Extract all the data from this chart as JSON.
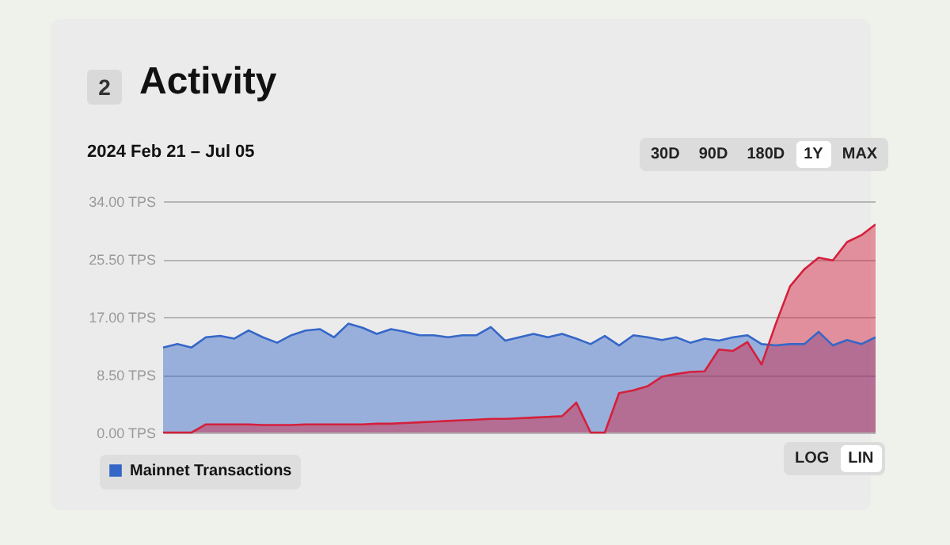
{
  "chart_data": {
    "type": "area",
    "title": "Activity",
    "subtitle": "2024 Feb 21 – Jul 05",
    "annotations": [
      "2",
      "30D",
      "90D",
      "180D",
      "1Y",
      "MAX",
      "LOG",
      "LIN"
    ],
    "categories": [
      null,
      null,
      null,
      null,
      null,
      null,
      null,
      null,
      null,
      null,
      null,
      null,
      null,
      null,
      null,
      null,
      null,
      null,
      null,
      null,
      null,
      null,
      null,
      null,
      null,
      null,
      null,
      null,
      null,
      null,
      null,
      null,
      null,
      null,
      null,
      null,
      null,
      null,
      null,
      null,
      null,
      null,
      null,
      null,
      null,
      null,
      null,
      null,
      null,
      null,
      null
    ],
    "series": [
      {
        "name": "Mainnet Transactions",
        "color": "#3567c8",
        "values": [
          12.5,
          13.0,
          12.5,
          14.0,
          14.2,
          13.8,
          15.0,
          14.0,
          13.2,
          14.3,
          15.0,
          15.2,
          14.0,
          16.0,
          15.4,
          14.5,
          15.2,
          14.8,
          14.3,
          14.3,
          14.0,
          14.3,
          14.3,
          15.5,
          13.5,
          14.0,
          14.5,
          14.0,
          14.5,
          13.8,
          13.0,
          14.2,
          12.8,
          14.3,
          14.0,
          13.6,
          14.0,
          13.2,
          13.8,
          13.5,
          14.0,
          14.3,
          13.0,
          12.8,
          13.0,
          13.0,
          14.8,
          12.8,
          13.6,
          13.0,
          14.0
        ]
      },
      {
        "color": "#d4203c",
        "values": [
          0,
          0,
          0,
          1.2,
          1.2,
          1.2,
          1.2,
          1.1,
          1.1,
          1.1,
          1.2,
          1.2,
          1.2,
          1.2,
          1.2,
          1.3,
          1.3,
          1.4,
          1.5,
          1.6,
          1.7,
          1.8,
          1.9,
          2.0,
          2.0,
          2.1,
          2.2,
          2.3,
          2.4,
          4.4,
          0,
          0,
          5.8,
          6.2,
          6.8,
          8.2,
          8.6,
          8.9,
          9.0,
          12.2,
          12.0,
          13.3,
          10.0,
          16.0,
          21.5,
          24.0,
          25.7,
          25.3,
          28.0,
          29.0,
          30.6
        ]
      }
    ],
    "ylim": [
      0,
      34
    ],
    "yticks": [
      {
        "value": 0,
        "label": "0.00 TPS"
      },
      {
        "value": 8.5,
        "label": "8.50 TPS"
      },
      {
        "value": 17,
        "label": "17.00 TPS"
      },
      {
        "value": 25.5,
        "label": "25.50 TPS"
      },
      {
        "value": 34,
        "label": "34.00 TPS"
      }
    ],
    "grid": "y",
    "legend": "bottom left"
  }
}
